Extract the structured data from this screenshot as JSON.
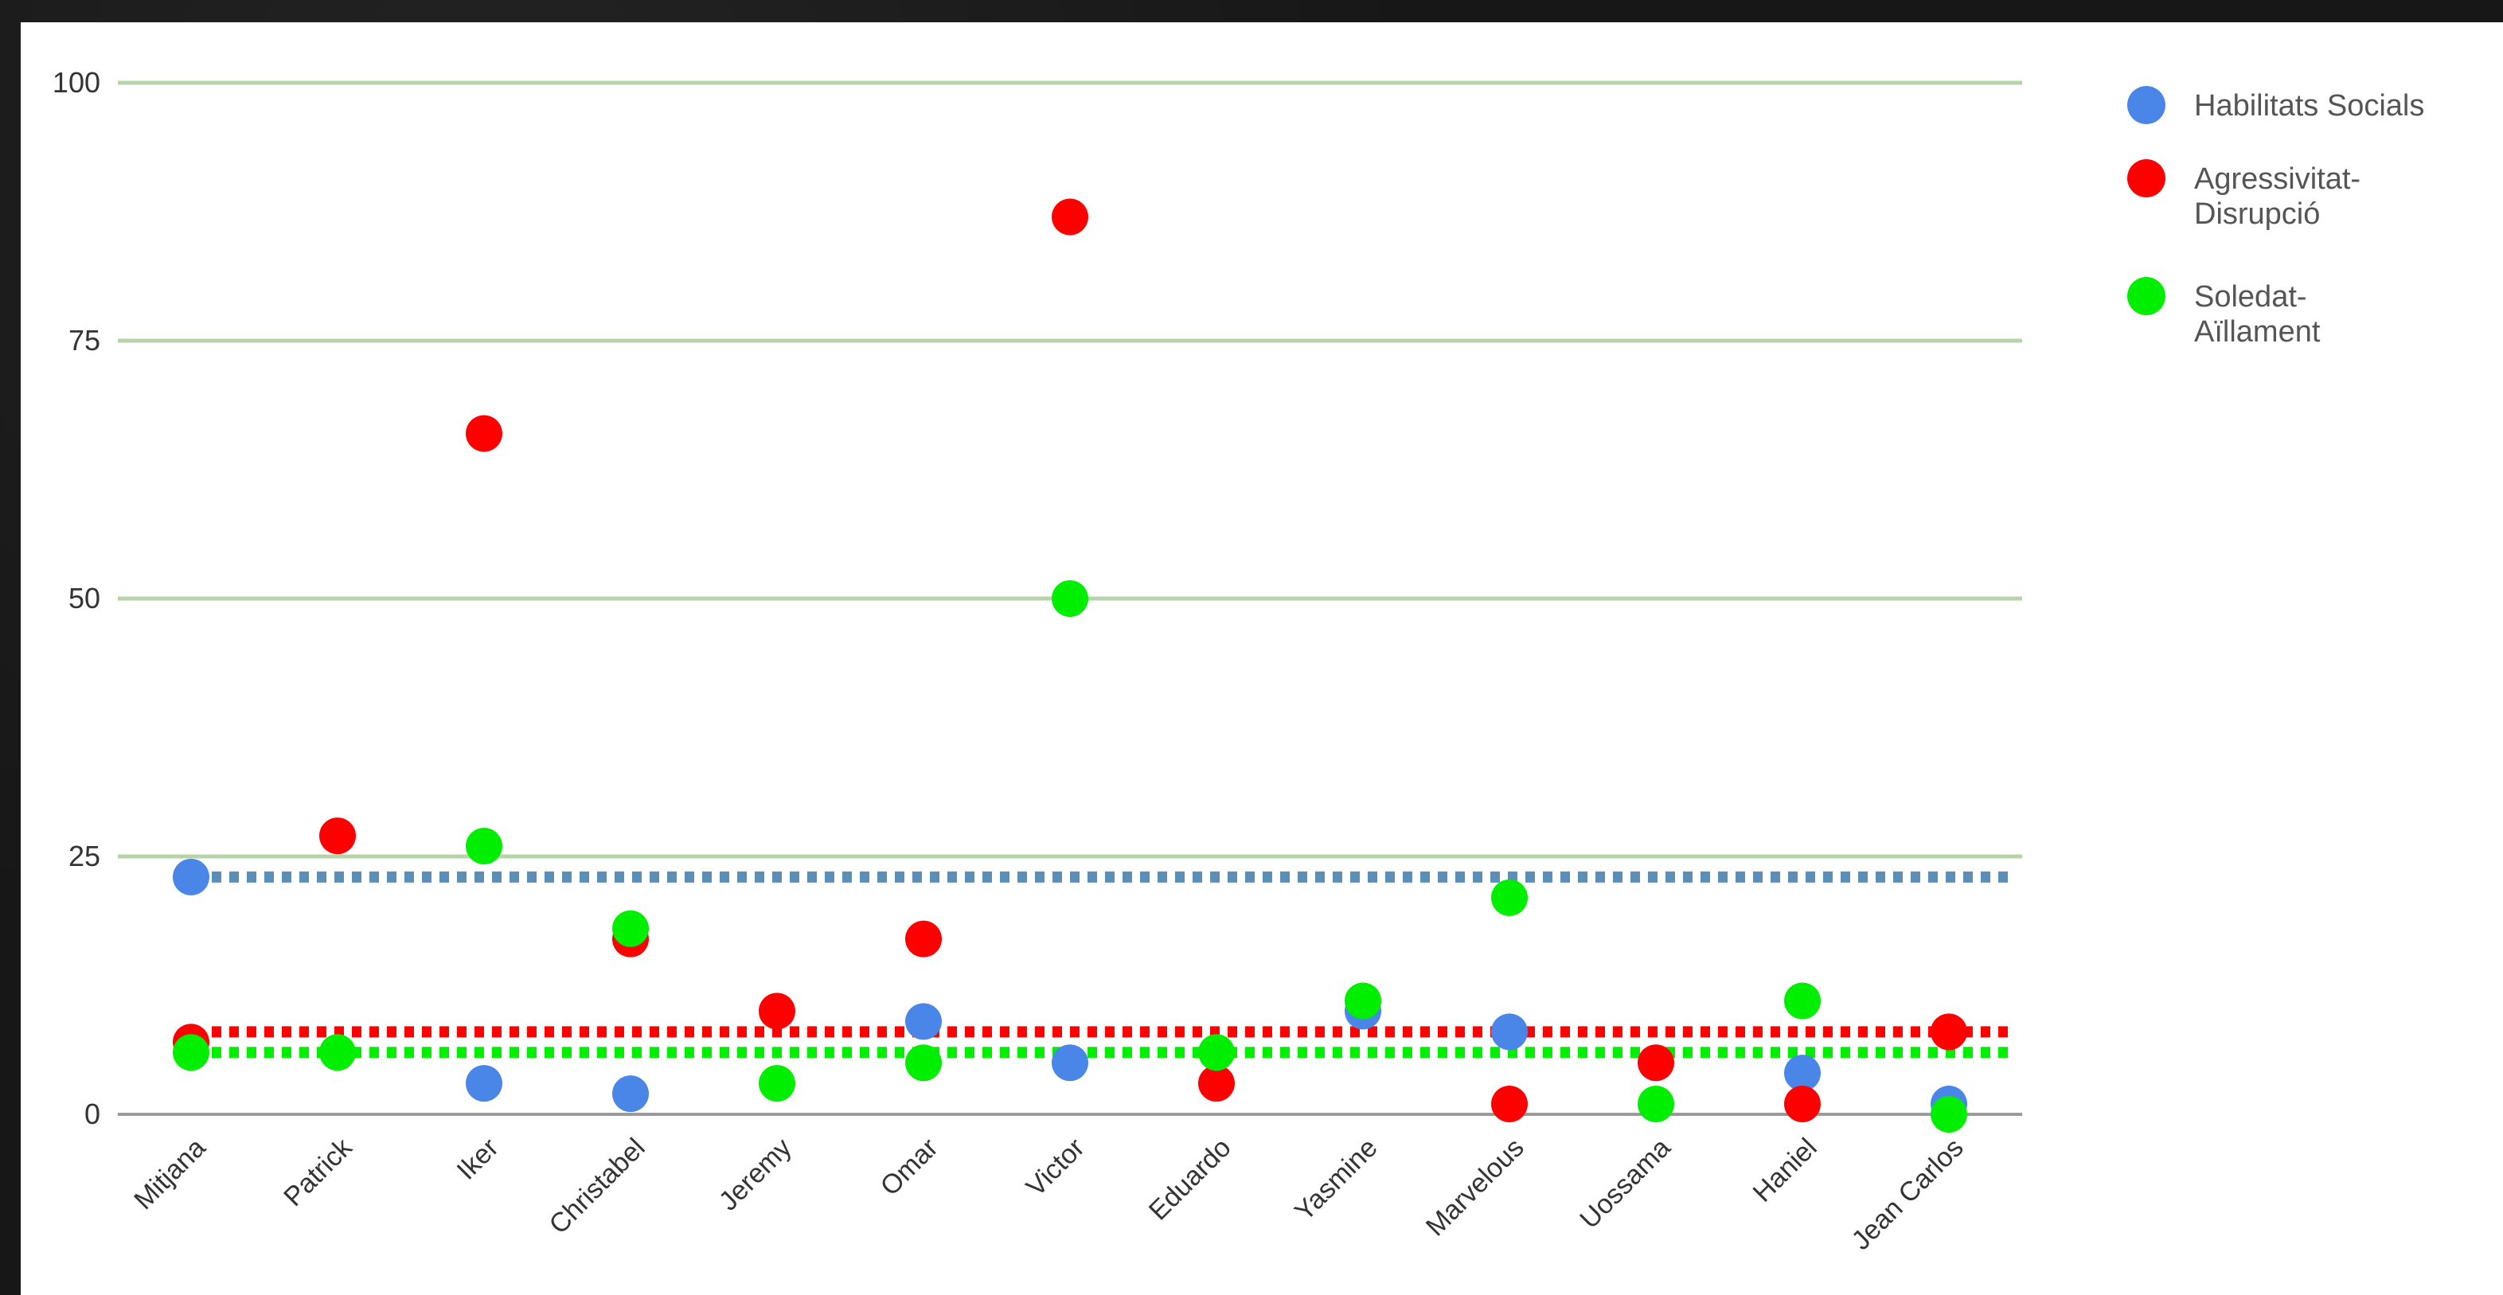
{
  "chart_data": {
    "type": "scatter",
    "categories": [
      "Mitjana",
      "Patrick",
      "Iker",
      "Christabel",
      "Jeremy",
      "Omar",
      "Victor",
      "Eduardo",
      "Yasmine",
      "Marvelous",
      "Uossama",
      "Haniel",
      "Jean Carlos"
    ],
    "series": [
      {
        "name": "Habilitats Socials",
        "color": "#4a86e8",
        "values": [
          23,
          null,
          3,
          2,
          null,
          9,
          5,
          null,
          10,
          8,
          null,
          4,
          1
        ]
      },
      {
        "name": "Agressivitat-Disrupció",
        "color": "#ff0000",
        "values": [
          7,
          27,
          66,
          17,
          10,
          17,
          87,
          3,
          null,
          1,
          5,
          1,
          8
        ]
      },
      {
        "name": "Soledat-Aïllament",
        "color": "#00ee00",
        "values": [
          6,
          6,
          26,
          18,
          3,
          5,
          50,
          6,
          11,
          21,
          1,
          11,
          0
        ]
      }
    ],
    "reference_lines": [
      {
        "series": "Habilitats Socials",
        "value": 23,
        "color": "#5b8fb8",
        "style": "dotted"
      },
      {
        "series": "Agressivitat-Disrupció",
        "value": 8,
        "color": "#ff0000",
        "style": "dotted"
      },
      {
        "series": "Soledat-Aïllament",
        "value": 6,
        "color": "#00ee00",
        "style": "dotted"
      }
    ],
    "yticks": [
      "0",
      "25",
      "50",
      "75",
      "100"
    ],
    "ylim": [
      0,
      100
    ],
    "grid": true,
    "grid_color": "#b7d3a8",
    "legend_position": "right",
    "legend": [
      {
        "lines": [
          "Habilitats Socials"
        ],
        "color": "#4a86e8"
      },
      {
        "lines": [
          "Agressivitat-",
          "Disrupció"
        ],
        "color": "#ff0000"
      },
      {
        "lines": [
          "Soledat-",
          "Aïllament"
        ],
        "color": "#00ee00"
      }
    ]
  }
}
